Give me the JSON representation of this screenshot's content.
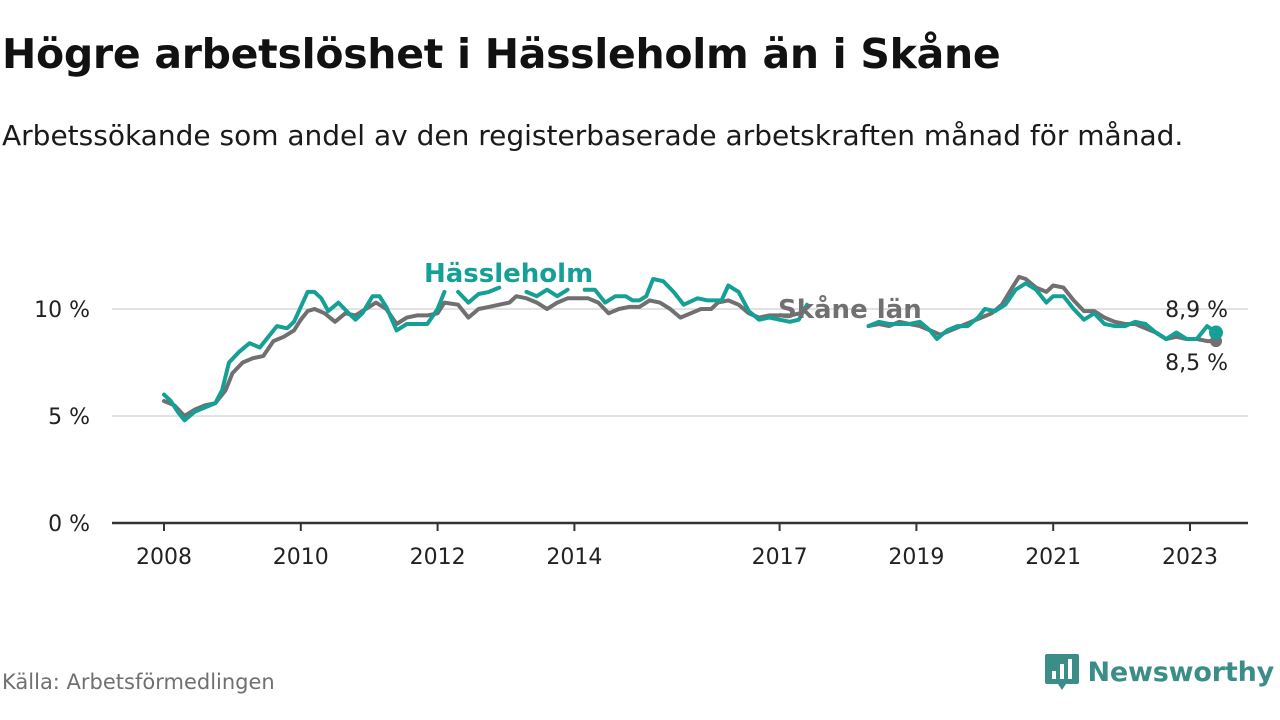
{
  "title": "Högre arbetslöshet i Hässleholm än i Skåne",
  "subtitle": "Arbetssökande som andel av den registerbaserade arbetskraften månad för månad.",
  "source": "Källa: Arbetsförmedlingen",
  "brand": {
    "name": "Newsworthy",
    "icon": "newsworthy-logo-icon"
  },
  "colors": {
    "hassleholm": "#14a096",
    "skane": "#707070",
    "axis": "#333333",
    "grid": "#d9d9d9"
  },
  "chart_data": {
    "type": "line",
    "title": "Högre arbetslöshet i Hässleholm än i Skåne",
    "xlabel": "",
    "ylabel": "",
    "ylim": [
      0,
      12
    ],
    "xlim": [
      2008,
      2023.42
    ],
    "yticks": [
      0,
      5,
      10
    ],
    "ytick_labels": [
      "0 %",
      "5 %",
      "10 %"
    ],
    "xticks": [
      2008,
      2010,
      2012,
      2014,
      2017,
      2019,
      2021,
      2023
    ],
    "xtick_labels": [
      "2008",
      "2010",
      "2012",
      "2014",
      "2017",
      "2019",
      "2021",
      "2023"
    ],
    "grid": true,
    "series": [
      {
        "name": "Hässleholm",
        "label": "Hässleholm",
        "color": "#14a096",
        "end_label": "8,9 %",
        "end_value": 8.9,
        "segments": [
          [
            [
              2008.0,
              6.0
            ],
            [
              2008.1,
              5.7
            ],
            [
              2008.2,
              5.2
            ],
            [
              2008.3,
              4.8
            ],
            [
              2008.45,
              5.2
            ],
            [
              2008.6,
              5.4
            ],
            [
              2008.75,
              5.6
            ],
            [
              2008.85,
              6.2
            ],
            [
              2008.95,
              7.5
            ],
            [
              2009.1,
              8.0
            ],
            [
              2009.25,
              8.4
            ],
            [
              2009.4,
              8.2
            ],
            [
              2009.55,
              8.8
            ],
            [
              2009.65,
              9.2
            ],
            [
              2009.8,
              9.1
            ],
            [
              2009.9,
              9.4
            ],
            [
              2010.0,
              10.1
            ],
            [
              2010.1,
              10.8
            ],
            [
              2010.2,
              10.8
            ],
            [
              2010.3,
              10.5
            ],
            [
              2010.4,
              9.9
            ],
            [
              2010.55,
              10.3
            ],
            [
              2010.7,
              9.8
            ],
            [
              2010.8,
              9.5
            ],
            [
              2010.9,
              9.8
            ],
            [
              2011.05,
              10.6
            ],
            [
              2011.15,
              10.6
            ],
            [
              2011.25,
              10.1
            ],
            [
              2011.4,
              9.0
            ],
            [
              2011.55,
              9.3
            ],
            [
              2011.7,
              9.3
            ],
            [
              2011.85,
              9.3
            ],
            [
              2012.0,
              10.0
            ],
            [
              2012.1,
              10.8
            ]
          ],
          [
            [
              2012.3,
              10.8
            ],
            [
              2012.45,
              10.3
            ],
            [
              2012.6,
              10.7
            ],
            [
              2012.75,
              10.8
            ],
            [
              2012.9,
              11.0
            ]
          ],
          [
            [
              2013.3,
              10.8
            ],
            [
              2013.45,
              10.6
            ],
            [
              2013.6,
              10.9
            ],
            [
              2013.75,
              10.6
            ],
            [
              2013.9,
              10.9
            ]
          ],
          [
            [
              2014.15,
              10.9
            ],
            [
              2014.3,
              10.9
            ],
            [
              2014.45,
              10.3
            ],
            [
              2014.6,
              10.6
            ],
            [
              2014.75,
              10.6
            ],
            [
              2014.85,
              10.4
            ],
            [
              2014.95,
              10.4
            ],
            [
              2015.05,
              10.6
            ],
            [
              2015.15,
              11.4
            ],
            [
              2015.3,
              11.3
            ],
            [
              2015.45,
              10.8
            ],
            [
              2015.6,
              10.2
            ],
            [
              2015.8,
              10.5
            ],
            [
              2015.95,
              10.4
            ],
            [
              2016.15,
              10.4
            ],
            [
              2016.25,
              11.1
            ],
            [
              2016.4,
              10.8
            ],
            [
              2016.55,
              9.9
            ],
            [
              2016.7,
              9.5
            ],
            [
              2016.85,
              9.6
            ],
            [
              2017.0,
              9.5
            ],
            [
              2017.15,
              9.4
            ],
            [
              2017.28,
              9.5
            ],
            [
              2017.4,
              10.2
            ]
          ],
          [
            [
              2018.3,
              9.2
            ],
            [
              2018.45,
              9.4
            ],
            [
              2018.6,
              9.3
            ],
            [
              2018.75,
              9.3
            ],
            [
              2018.9,
              9.3
            ],
            [
              2019.05,
              9.4
            ],
            [
              2019.2,
              9.0
            ],
            [
              2019.3,
              8.6
            ],
            [
              2019.45,
              9.0
            ],
            [
              2019.6,
              9.2
            ],
            [
              2019.75,
              9.2
            ],
            [
              2019.9,
              9.6
            ],
            [
              2020.0,
              10.0
            ],
            [
              2020.15,
              9.9
            ],
            [
              2020.3,
              10.2
            ],
            [
              2020.45,
              10.9
            ],
            [
              2020.6,
              11.2
            ],
            [
              2020.75,
              10.9
            ],
            [
              2020.9,
              10.3
            ],
            [
              2021.0,
              10.6
            ],
            [
              2021.15,
              10.6
            ],
            [
              2021.3,
              10.0
            ],
            [
              2021.45,
              9.5
            ],
            [
              2021.6,
              9.8
            ],
            [
              2021.75,
              9.3
            ],
            [
              2021.9,
              9.2
            ],
            [
              2022.05,
              9.2
            ],
            [
              2022.2,
              9.4
            ],
            [
              2022.35,
              9.3
            ],
            [
              2022.5,
              8.9
            ],
            [
              2022.65,
              8.6
            ],
            [
              2022.8,
              8.9
            ],
            [
              2022.95,
              8.6
            ],
            [
              2023.1,
              8.6
            ],
            [
              2023.25,
              9.2
            ],
            [
              2023.38,
              8.9
            ]
          ]
        ]
      },
      {
        "name": "Skåne län",
        "label": "Skåne län",
        "color": "#707070",
        "end_label": "8,5 %",
        "end_value": 8.5,
        "segments": [
          [
            [
              2008.0,
              5.7
            ],
            [
              2008.15,
              5.5
            ],
            [
              2008.3,
              5.0
            ],
            [
              2008.45,
              5.3
            ],
            [
              2008.6,
              5.5
            ],
            [
              2008.75,
              5.6
            ],
            [
              2008.9,
              6.2
            ],
            [
              2009.0,
              7.0
            ],
            [
              2009.15,
              7.5
            ],
            [
              2009.3,
              7.7
            ],
            [
              2009.45,
              7.8
            ],
            [
              2009.6,
              8.5
            ],
            [
              2009.75,
              8.7
            ],
            [
              2009.9,
              9.0
            ],
            [
              2010.0,
              9.5
            ],
            [
              2010.1,
              9.9
            ],
            [
              2010.2,
              10.0
            ],
            [
              2010.35,
              9.8
            ],
            [
              2010.5,
              9.4
            ],
            [
              2010.65,
              9.8
            ],
            [
              2010.8,
              9.7
            ],
            [
              2010.95,
              10.0
            ],
            [
              2011.1,
              10.3
            ],
            [
              2011.25,
              10.0
            ],
            [
              2011.4,
              9.3
            ],
            [
              2011.55,
              9.6
            ],
            [
              2011.7,
              9.7
            ],
            [
              2011.85,
              9.7
            ],
            [
              2012.0,
              9.8
            ],
            [
              2012.1,
              10.3
            ],
            [
              2012.3,
              10.2
            ],
            [
              2012.45,
              9.6
            ],
            [
              2012.6,
              10.0
            ],
            [
              2012.75,
              10.1
            ],
            [
              2012.9,
              10.2
            ],
            [
              2013.05,
              10.3
            ],
            [
              2013.15,
              10.6
            ],
            [
              2013.3,
              10.5
            ],
            [
              2013.45,
              10.3
            ],
            [
              2013.6,
              10.0
            ],
            [
              2013.75,
              10.3
            ],
            [
              2013.9,
              10.5
            ],
            [
              2014.05,
              10.5
            ],
            [
              2014.2,
              10.5
            ],
            [
              2014.35,
              10.3
            ],
            [
              2014.5,
              9.8
            ],
            [
              2014.65,
              10.0
            ],
            [
              2014.8,
              10.1
            ],
            [
              2014.95,
              10.1
            ],
            [
              2015.1,
              10.4
            ],
            [
              2015.25,
              10.3
            ],
            [
              2015.4,
              10.0
            ],
            [
              2015.55,
              9.6
            ],
            [
              2015.7,
              9.8
            ],
            [
              2015.85,
              10.0
            ],
            [
              2016.0,
              10.0
            ],
            [
              2016.1,
              10.3
            ],
            [
              2016.25,
              10.4
            ],
            [
              2016.4,
              10.2
            ],
            [
              2016.55,
              9.8
            ],
            [
              2016.7,
              9.6
            ],
            [
              2016.85,
              9.7
            ],
            [
              2017.0,
              9.7
            ],
            [
              2017.15,
              9.7
            ],
            [
              2017.3,
              9.8
            ]
          ],
          [
            [
              2018.3,
              9.2
            ],
            [
              2018.45,
              9.3
            ],
            [
              2018.6,
              9.2
            ],
            [
              2018.75,
              9.4
            ],
            [
              2018.9,
              9.3
            ],
            [
              2019.05,
              9.2
            ],
            [
              2019.2,
              9.0
            ],
            [
              2019.35,
              8.8
            ],
            [
              2019.5,
              9.0
            ],
            [
              2019.65,
              9.2
            ],
            [
              2019.8,
              9.4
            ],
            [
              2019.95,
              9.6
            ],
            [
              2020.1,
              9.8
            ],
            [
              2020.25,
              10.2
            ],
            [
              2020.4,
              11.0
            ],
            [
              2020.5,
              11.5
            ],
            [
              2020.6,
              11.4
            ],
            [
              2020.75,
              11.0
            ],
            [
              2020.9,
              10.8
            ],
            [
              2021.0,
              11.1
            ],
            [
              2021.15,
              11.0
            ],
            [
              2021.3,
              10.4
            ],
            [
              2021.45,
              9.9
            ],
            [
              2021.6,
              9.9
            ],
            [
              2021.75,
              9.6
            ],
            [
              2021.9,
              9.4
            ],
            [
              2022.05,
              9.3
            ],
            [
              2022.2,
              9.3
            ],
            [
              2022.35,
              9.1
            ],
            [
              2022.5,
              8.9
            ],
            [
              2022.65,
              8.6
            ],
            [
              2022.8,
              8.7
            ],
            [
              2022.95,
              8.6
            ],
            [
              2023.1,
              8.6
            ],
            [
              2023.25,
              8.5
            ],
            [
              2023.38,
              8.5
            ]
          ]
        ]
      }
    ]
  }
}
